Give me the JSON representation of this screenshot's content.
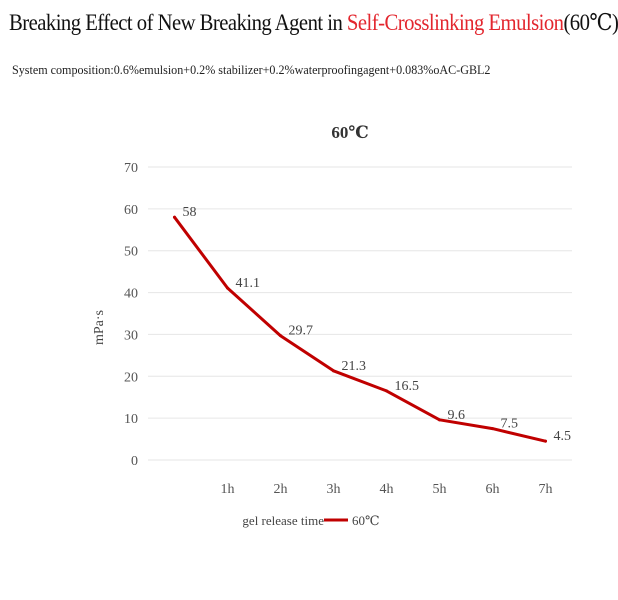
{
  "header": {
    "title_prefix": "Breaking Effect of New Breaking Agent in ",
    "title_highlight": "Self-Crosslinking Emulsion",
    "title_suffix": "(60℃)",
    "highlight_color": "#e3262e",
    "subtitle": "System composition:0.6%emulsion+0.2% stabilizer+0.2%waterproofingagent+0.083%oAC-GBL2"
  },
  "chart_data": {
    "type": "line",
    "title": "60℃",
    "xlabel": "gel release time",
    "ylabel": "mPa·s",
    "categories": [
      "",
      "1h",
      "2h",
      "3h",
      "4h",
      "5h",
      "6h",
      "7h"
    ],
    "series": [
      {
        "name": "60℃",
        "color": "#c00000",
        "values": [
          58,
          41.1,
          29.7,
          21.3,
          16.5,
          9.6,
          7.5,
          4.5
        ]
      }
    ],
    "ylim": [
      0,
      70
    ],
    "yticks": [
      0,
      10,
      20,
      30,
      40,
      50,
      60,
      70
    ],
    "grid": true,
    "legend": "bottom"
  }
}
